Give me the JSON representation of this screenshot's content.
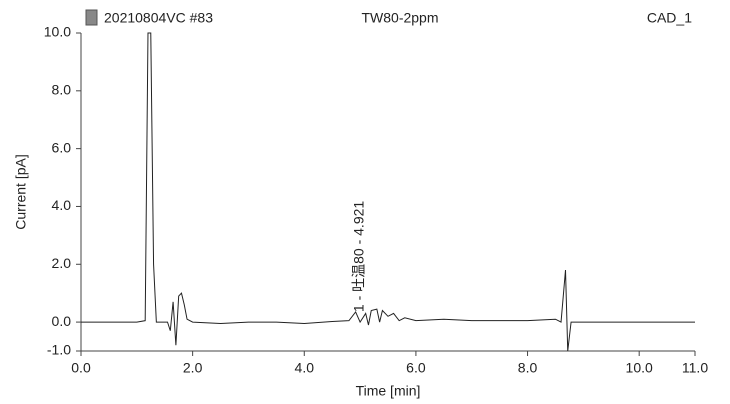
{
  "chart_data": {
    "type": "line",
    "header": [
      "20210804VC #83",
      "TW80-2ppm",
      "CAD_1"
    ],
    "xlabel": "Time [min]",
    "ylabel": "Current [pA]",
    "x": [
      0,
      0.5,
      1.0,
      1.15,
      1.2,
      1.25,
      1.3,
      1.35,
      1.55,
      1.6,
      1.65,
      1.7,
      1.75,
      1.8,
      1.85,
      1.9,
      2.0,
      2.5,
      3.0,
      3.5,
      4.0,
      4.5,
      4.8,
      4.92,
      5.0,
      5.1,
      5.15,
      5.2,
      5.3,
      5.35,
      5.4,
      5.5,
      5.6,
      5.7,
      5.8,
      6.0,
      6.5,
      7.0,
      7.5,
      8.0,
      8.5,
      8.6,
      8.68,
      8.72,
      8.78,
      9.0,
      10.0,
      11.0
    ],
    "values": [
      0,
      0,
      0,
      0.05,
      10,
      10,
      2,
      0,
      0,
      -0.3,
      0.7,
      -0.8,
      0.9,
      1.0,
      0.6,
      0.1,
      0,
      -0.05,
      0,
      0,
      -0.05,
      0.02,
      0.05,
      0.35,
      0,
      0.3,
      -0.1,
      0.4,
      0.45,
      0,
      0.4,
      0.2,
      0.3,
      0.05,
      0.15,
      0.05,
      0.1,
      0.05,
      0.05,
      0.05,
      0.1,
      0,
      1.8,
      -1.0,
      0,
      0,
      0,
      0
    ],
    "color": "#222222",
    "annotations": [
      {
        "text": "1 - 吐温80 - 4.921",
        "x": 4.921
      }
    ],
    "xlim": [
      0,
      11
    ],
    "ylim": [
      -1,
      10
    ],
    "xticks": [
      {
        "value": 0,
        "label": "0.0"
      },
      {
        "value": 2,
        "label": "2.0"
      },
      {
        "value": 4,
        "label": "4.0"
      },
      {
        "value": 6,
        "label": "6.0"
      },
      {
        "value": 8,
        "label": "8.0"
      },
      {
        "value": 10,
        "label": "10.0"
      },
      {
        "value": 11,
        "label": "11.0"
      }
    ],
    "yticks": [
      {
        "value": -1,
        "label": "-1.0"
      },
      {
        "value": 0,
        "label": "0.0"
      },
      {
        "value": 2,
        "label": "2.0"
      },
      {
        "value": 4,
        "label": "4.0"
      },
      {
        "value": 6,
        "label": "6.0"
      },
      {
        "value": 8,
        "label": "8.0"
      },
      {
        "value": 10,
        "label": "10.0"
      }
    ]
  }
}
